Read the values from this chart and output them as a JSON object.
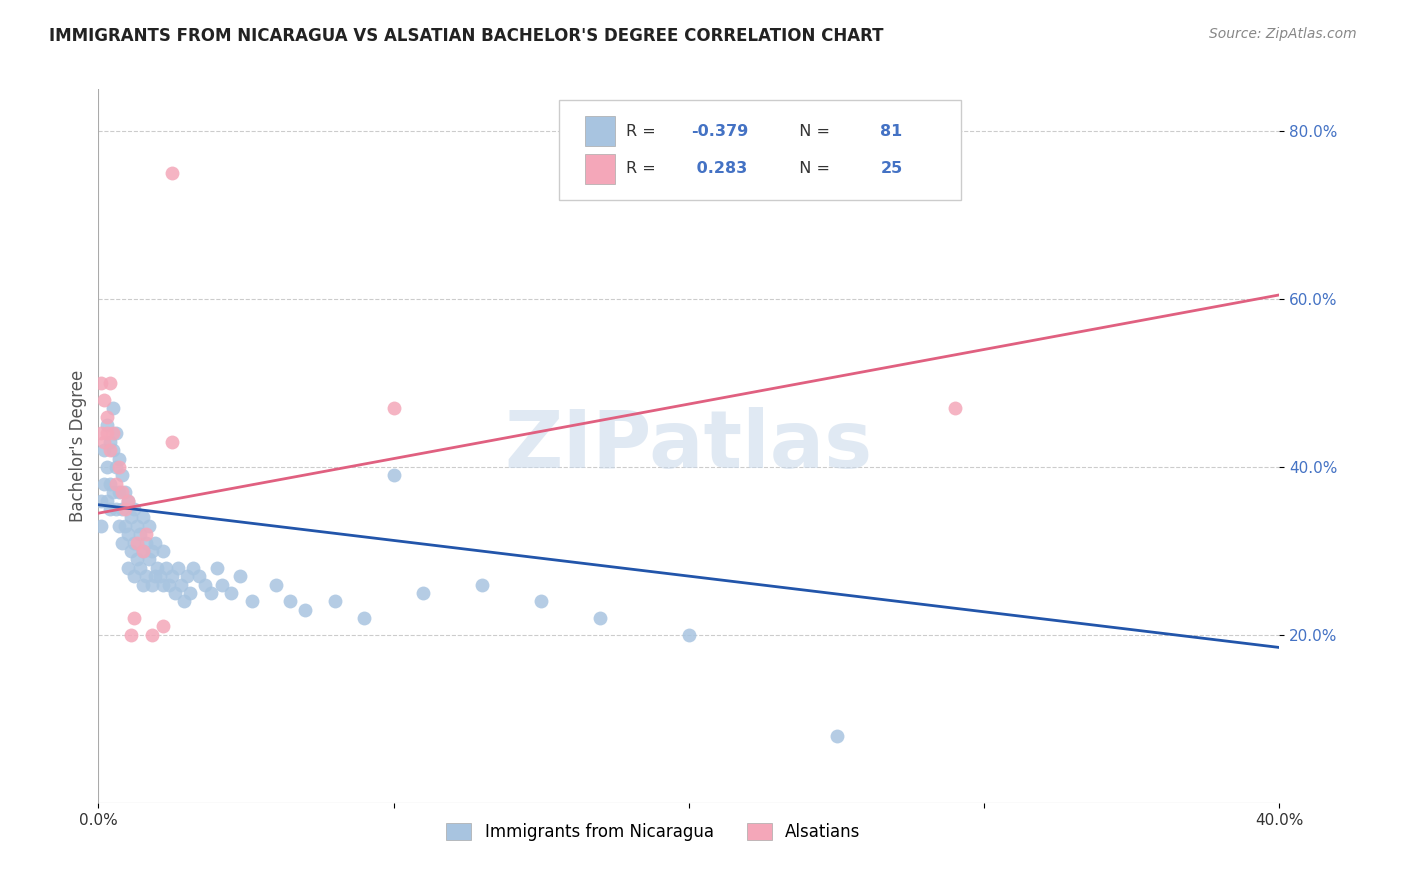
{
  "title": "IMMIGRANTS FROM NICARAGUA VS ALSATIAN BACHELOR'S DEGREE CORRELATION CHART",
  "source": "Source: ZipAtlas.com",
  "ylabel": "Bachelor's Degree",
  "xlim": [
    0.0,
    0.4
  ],
  "ylim": [
    0.0,
    0.85
  ],
  "blue_R": -0.379,
  "blue_N": 81,
  "pink_R": 0.283,
  "pink_N": 25,
  "blue_color": "#a8c4e0",
  "pink_color": "#f4a7b9",
  "blue_line_color": "#2255aa",
  "pink_line_color": "#e06080",
  "watermark": "ZIPatlas",
  "legend_label_blue": "Immigrants from Nicaragua",
  "legend_label_pink": "Alsatians",
  "blue_x": [
    0.001,
    0.001,
    0.002,
    0.002,
    0.003,
    0.003,
    0.003,
    0.004,
    0.004,
    0.004,
    0.005,
    0.005,
    0.005,
    0.006,
    0.006,
    0.006,
    0.007,
    0.007,
    0.007,
    0.008,
    0.008,
    0.008,
    0.009,
    0.009,
    0.01,
    0.01,
    0.01,
    0.011,
    0.011,
    0.012,
    0.012,
    0.012,
    0.013,
    0.013,
    0.014,
    0.014,
    0.015,
    0.015,
    0.015,
    0.016,
    0.016,
    0.017,
    0.017,
    0.018,
    0.018,
    0.019,
    0.019,
    0.02,
    0.021,
    0.022,
    0.022,
    0.023,
    0.024,
    0.025,
    0.026,
    0.027,
    0.028,
    0.029,
    0.03,
    0.031,
    0.032,
    0.034,
    0.036,
    0.038,
    0.04,
    0.042,
    0.045,
    0.048,
    0.052,
    0.06,
    0.065,
    0.07,
    0.08,
    0.09,
    0.1,
    0.11,
    0.13,
    0.15,
    0.17,
    0.2,
    0.25
  ],
  "blue_y": [
    0.36,
    0.33,
    0.42,
    0.38,
    0.45,
    0.4,
    0.36,
    0.43,
    0.38,
    0.35,
    0.47,
    0.42,
    0.37,
    0.44,
    0.4,
    0.35,
    0.41,
    0.37,
    0.33,
    0.39,
    0.35,
    0.31,
    0.37,
    0.33,
    0.36,
    0.32,
    0.28,
    0.34,
    0.3,
    0.35,
    0.31,
    0.27,
    0.33,
    0.29,
    0.32,
    0.28,
    0.34,
    0.3,
    0.26,
    0.31,
    0.27,
    0.33,
    0.29,
    0.3,
    0.26,
    0.31,
    0.27,
    0.28,
    0.27,
    0.3,
    0.26,
    0.28,
    0.26,
    0.27,
    0.25,
    0.28,
    0.26,
    0.24,
    0.27,
    0.25,
    0.28,
    0.27,
    0.26,
    0.25,
    0.28,
    0.26,
    0.25,
    0.27,
    0.24,
    0.26,
    0.24,
    0.23,
    0.24,
    0.22,
    0.39,
    0.25,
    0.26,
    0.24,
    0.22,
    0.2,
    0.08
  ],
  "pink_x": [
    0.001,
    0.001,
    0.002,
    0.002,
    0.003,
    0.003,
    0.004,
    0.004,
    0.005,
    0.006,
    0.007,
    0.008,
    0.009,
    0.01,
    0.011,
    0.012,
    0.013,
    0.015,
    0.016,
    0.018,
    0.022,
    0.025,
    0.1,
    0.29,
    0.025
  ],
  "pink_y": [
    0.5,
    0.44,
    0.48,
    0.43,
    0.46,
    0.44,
    0.5,
    0.42,
    0.44,
    0.38,
    0.4,
    0.37,
    0.35,
    0.36,
    0.2,
    0.22,
    0.31,
    0.3,
    0.32,
    0.2,
    0.21,
    0.43,
    0.47,
    0.47,
    0.75
  ]
}
